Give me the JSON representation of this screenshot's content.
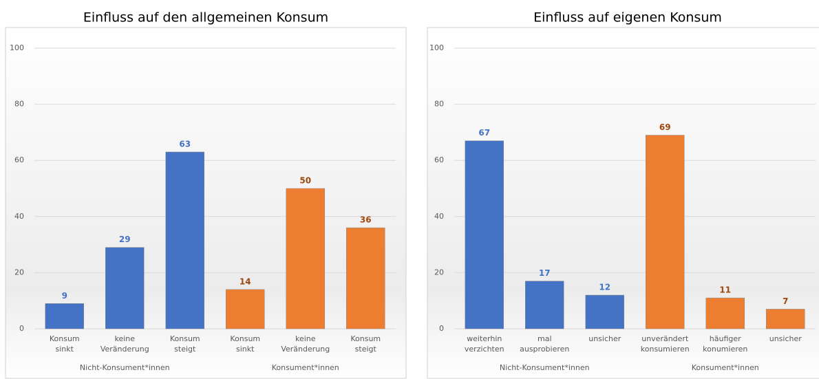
{
  "chart_data": [
    {
      "type": "bar",
      "title": "Einfluss auf den allgemeinen Konsum",
      "ylim": [
        0,
        100
      ],
      "yticks": [
        0,
        20,
        40,
        60,
        80,
        100
      ],
      "grid": true,
      "groups": [
        {
          "name": "Nicht-Konsument*innen",
          "color": "#4472c4",
          "label_color": "#4472c4",
          "categories": [
            [
              "Konsum",
              "sinkt"
            ],
            [
              "keine",
              "Veränderung"
            ],
            [
              "Konsum",
              "steigt"
            ]
          ],
          "values": [
            9,
            29,
            63
          ]
        },
        {
          "name": "Konsument*innen",
          "color": "#ed7d31",
          "label_color": "#9e480e",
          "categories": [
            [
              "Konsum",
              "sinkt"
            ],
            [
              "keine",
              "Veränderung"
            ],
            [
              "Konsum",
              "steigt"
            ]
          ],
          "values": [
            14,
            50,
            36
          ]
        }
      ]
    },
    {
      "type": "bar",
      "title": "Einfluss auf eigenen Konsum",
      "ylim": [
        0,
        100
      ],
      "yticks": [
        0,
        20,
        40,
        60,
        80,
        100
      ],
      "grid": true,
      "groups": [
        {
          "name": "Nicht-Konsument*innen",
          "color": "#4472c4",
          "label_color": "#4472c4",
          "categories": [
            [
              "weiterhin",
              "verzichten"
            ],
            [
              "mal",
              "ausprobieren"
            ],
            [
              "unsicher"
            ]
          ],
          "values": [
            67,
            17,
            12
          ]
        },
        {
          "name": "Konsument*innen",
          "color": "#ed7d31",
          "label_color": "#9e480e",
          "categories": [
            [
              "unverändert",
              "konsumieren"
            ],
            [
              "häufiger",
              "konumieren"
            ],
            [
              "unsicher"
            ]
          ],
          "values": [
            69,
            11,
            7
          ]
        }
      ]
    }
  ]
}
